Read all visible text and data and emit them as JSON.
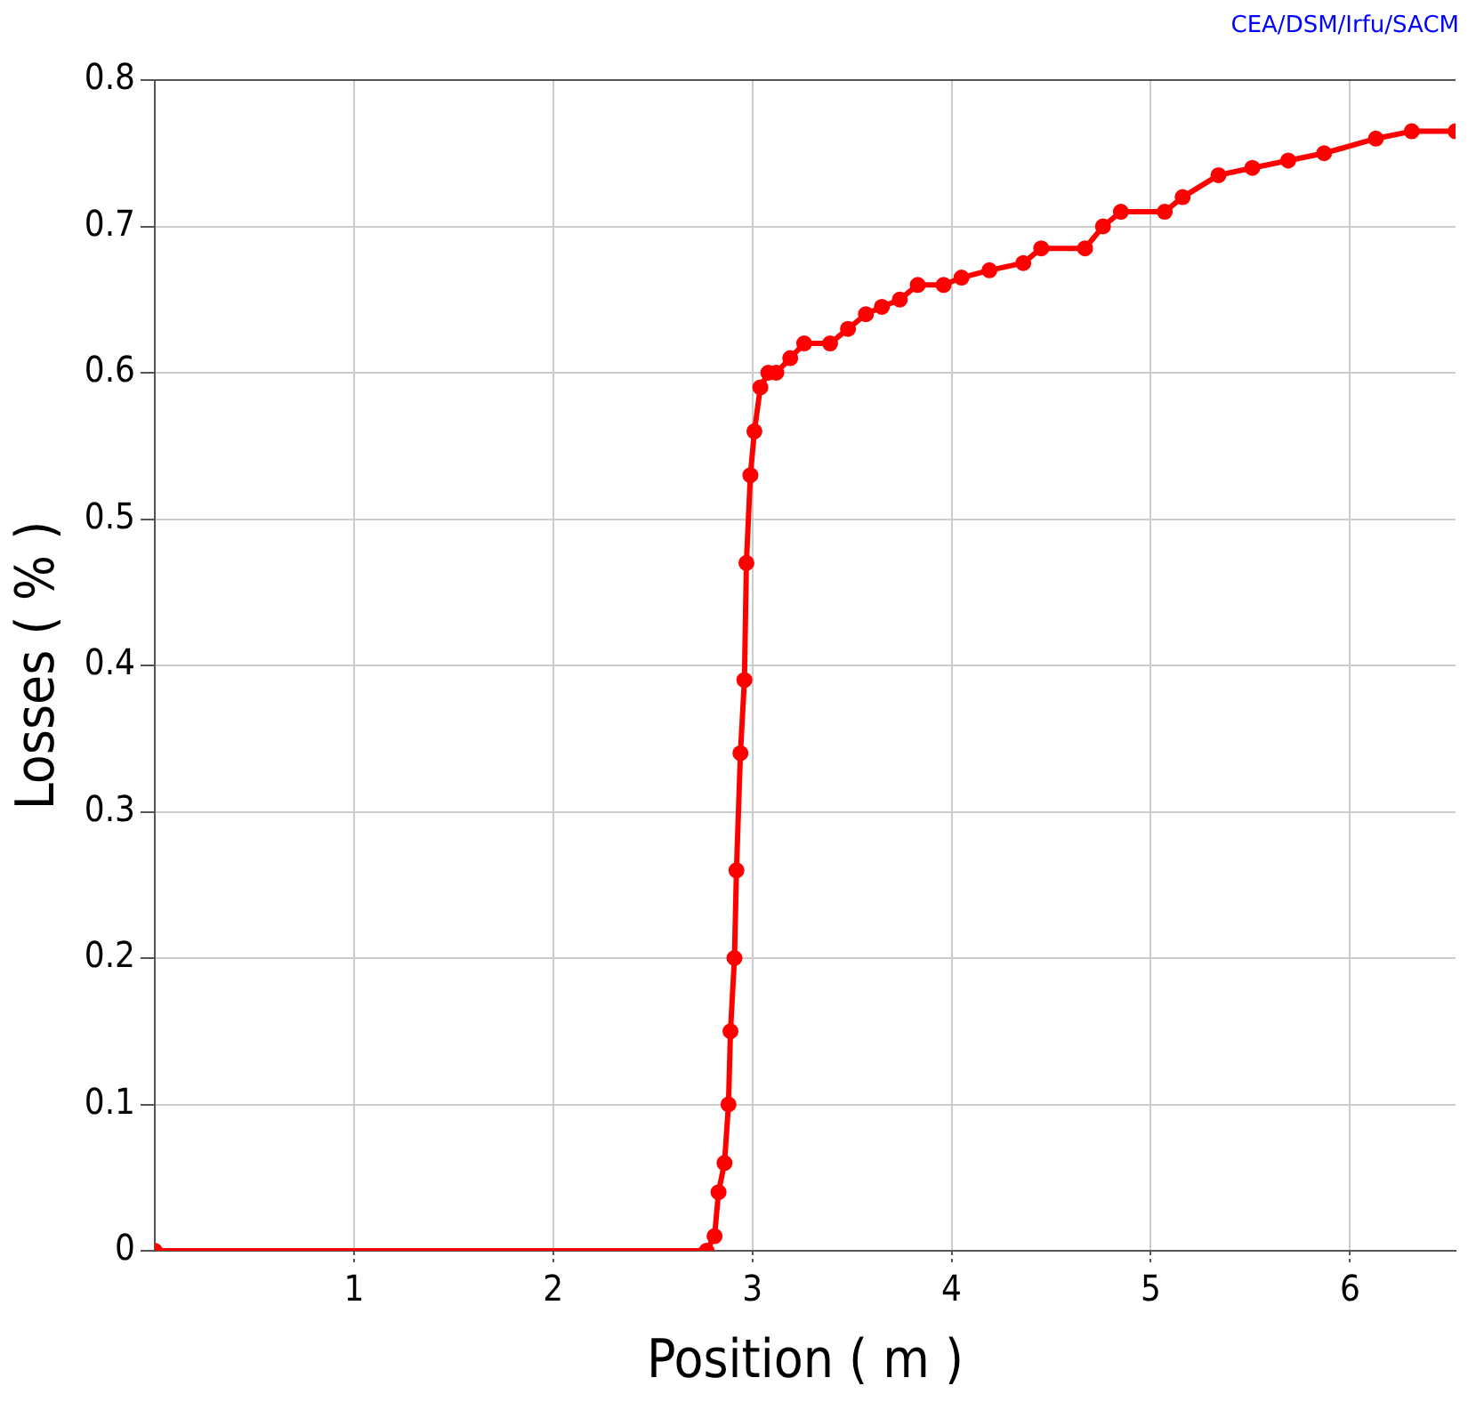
{
  "chart_data": {
    "type": "line",
    "xlabel": "Position ( m )",
    "ylabel": "Losses ( % )",
    "annotations": [
      "CEA/DSM/Irfu/SACM"
    ],
    "x": [
      0,
      2.77,
      2.81,
      2.83,
      2.86,
      2.88,
      2.89,
      2.91,
      2.92,
      2.94,
      2.96,
      2.97,
      2.99,
      3.01,
      3.04,
      3.08,
      3.12,
      3.19,
      3.26,
      3.39,
      3.48,
      3.57,
      3.65,
      3.74,
      3.83,
      3.96,
      4.05,
      4.19,
      4.36,
      4.45,
      4.67,
      4.76,
      4.85,
      5.07,
      5.16,
      5.34,
      5.51,
      5.69,
      5.87,
      6.13,
      6.31,
      6.53
    ],
    "series": [
      {
        "color": "#ff0000",
        "values": [
          0,
          0,
          0.01,
          0.04,
          0.06,
          0.1,
          0.15,
          0.2,
          0.26,
          0.34,
          0.39,
          0.47,
          0.53,
          0.56,
          0.59,
          0.6,
          0.6,
          0.61,
          0.62,
          0.62,
          0.63,
          0.64,
          0.645,
          0.65,
          0.66,
          0.66,
          0.665,
          0.67,
          0.675,
          0.685,
          0.685,
          0.7,
          0.71,
          0.71,
          0.72,
          0.735,
          0.74,
          0.745,
          0.75,
          0.76,
          0.765,
          0.765
        ]
      }
    ],
    "xlim": [
      0,
      6.53
    ],
    "xticks": [
      1,
      2,
      3,
      4,
      5,
      6
    ],
    "ylim": [
      0,
      0.8
    ],
    "yticks": [
      0,
      0.1,
      0.2,
      0.3,
      0.4,
      0.5,
      0.6,
      0.7,
      0.8
    ],
    "grid": true,
    "legend": false,
    "marker": "circle",
    "line_style": "solid"
  }
}
